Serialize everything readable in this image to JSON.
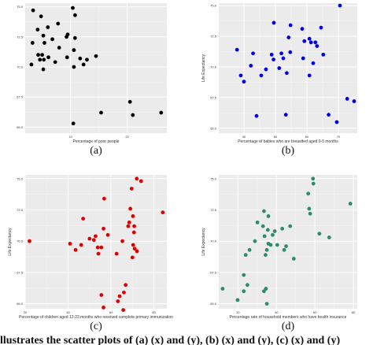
{
  "bottom_text": "llustrates the scatter plots of (a) (x) and (y), (b) (x) and (y), (c) (x) and (y)",
  "chart_data": [
    {
      "type": "scatter",
      "caption": "(a)",
      "xlabel": "Percentage of poor people",
      "ylabel": "",
      "xlim": [
        2,
        27
      ],
      "ylim": [
        64.5,
        75.3
      ],
      "x_ticks": [
        10,
        20
      ],
      "y_ticks": [
        65.0,
        67.5,
        70.0,
        72.5,
        75.0
      ],
      "y_tick_labels": [
        "65.0",
        "67.5",
        "70.0",
        "72.5",
        "75.0"
      ],
      "grid": true,
      "color": "#000000",
      "background": "#ebebeb",
      "points": [
        [
          3.4,
          74.7
        ],
        [
          4.8,
          74.2
        ],
        [
          4.2,
          73.1
        ],
        [
          6.0,
          73.3
        ],
        [
          7.8,
          73.6
        ],
        [
          5.2,
          72.6
        ],
        [
          3.3,
          72.0
        ],
        [
          5.4,
          72.0
        ],
        [
          6.8,
          72.3
        ],
        [
          10.8,
          74.3
        ],
        [
          10.4,
          74.9
        ],
        [
          9.3,
          72.5
        ],
        [
          9.5,
          72.7
        ],
        [
          10.8,
          72.4
        ],
        [
          8.0,
          71.6
        ],
        [
          4.3,
          71.0
        ],
        [
          5.0,
          71.0
        ],
        [
          6.1,
          70.8
        ],
        [
          4.6,
          70.6
        ],
        [
          5.3,
          70.6
        ],
        [
          3.1,
          70.2
        ],
        [
          7.3,
          70.4
        ],
        [
          9.4,
          70.8
        ],
        [
          10.6,
          71.4
        ],
        [
          11.7,
          70.7
        ],
        [
          12.9,
          70.6
        ],
        [
          12.3,
          70.2
        ],
        [
          14.5,
          70.9
        ],
        [
          5.2,
          69.8
        ],
        [
          10.6,
          70.0
        ],
        [
          20.5,
          67.1
        ],
        [
          10.5,
          65.3
        ],
        [
          15.4,
          66.2
        ],
        [
          21.0,
          66.0
        ],
        [
          26.0,
          66.2
        ]
      ]
    },
    {
      "type": "scatter",
      "caption": "(b)",
      "xlabel": "Percentage of babies who are breastfed aged 0-5 months",
      "ylabel": "Life Expectancy",
      "xlim": [
        32,
        76
      ],
      "ylim": [
        64.6,
        75.2
      ],
      "x_ticks": [
        40,
        50,
        60,
        70
      ],
      "y_ticks": [
        65.0,
        67.5,
        70.0,
        72.5,
        75.0
      ],
      "y_tick_labels": [
        "65.0",
        "67.5",
        "70.0",
        "72.5",
        "75.0"
      ],
      "grid": true,
      "color": "#0000ee",
      "background": "#ebebeb",
      "points": [
        [
          70.5,
          75.0
        ],
        [
          49.5,
          73.6
        ],
        [
          54.8,
          73.4
        ],
        [
          58.5,
          73.1
        ],
        [
          64.5,
          73.2
        ],
        [
          54.2,
          72.4
        ],
        [
          60.8,
          72.3
        ],
        [
          59.2,
          72.1
        ],
        [
          61.3,
          72.0
        ],
        [
          37.8,
          71.4
        ],
        [
          51.9,
          71.1
        ],
        [
          54.7,
          71.2
        ],
        [
          63.2,
          71.7
        ],
        [
          62.7,
          72.0
        ],
        [
          42.9,
          71.1
        ],
        [
          48.8,
          71.0
        ],
        [
          65.2,
          71.0
        ],
        [
          52.5,
          70.7
        ],
        [
          49.4,
          70.6
        ],
        [
          58.8,
          70.7
        ],
        [
          62.0,
          70.3
        ],
        [
          42.2,
          70.1
        ],
        [
          51.2,
          69.9
        ],
        [
          47.0,
          69.8
        ],
        [
          53.6,
          69.5
        ],
        [
          39.0,
          69.3
        ],
        [
          40.0,
          68.8
        ],
        [
          45.5,
          69.3
        ],
        [
          60.8,
          69.3
        ],
        [
          72.8,
          67.4
        ],
        [
          75.0,
          67.2
        ],
        [
          44.0,
          66.0
        ],
        [
          53.3,
          66.1
        ],
        [
          66.9,
          66.1
        ],
        [
          69.5,
          65.5
        ]
      ]
    },
    {
      "type": "scatter",
      "caption": "(c)",
      "xlabel": "Percentage of children aged 12-23 months who received complete primary immunization",
      "ylabel": "Life Expectancy",
      "xlim": [
        20,
        86
      ],
      "ylim": [
        64.6,
        75.3
      ],
      "x_ticks": [
        20,
        40,
        60,
        80
      ],
      "y_ticks": [
        65.0,
        67.5,
        70.0,
        72.5,
        75.0
      ],
      "y_tick_labels": [
        "65.0",
        "67.5",
        "70.0",
        "72.5",
        "75.0"
      ],
      "grid": true,
      "color": "#e00000",
      "background": "#ebebeb",
      "points": [
        [
          72.0,
          75.0
        ],
        [
          74.0,
          74.8
        ],
        [
          69.6,
          74.2
        ],
        [
          56.8,
          73.4
        ],
        [
          69.0,
          72.6
        ],
        [
          84.1,
          72.3
        ],
        [
          70.2,
          72.0
        ],
        [
          47.0,
          71.8
        ],
        [
          68.5,
          71.5
        ],
        [
          56.5,
          71.0
        ],
        [
          68.0,
          71.2
        ],
        [
          70.8,
          71.2
        ],
        [
          58.5,
          70.5
        ],
        [
          70.7,
          70.7
        ],
        [
          52.8,
          70.4
        ],
        [
          50.0,
          70.2
        ],
        [
          52.0,
          70.1
        ],
        [
          65.3,
          70.0
        ],
        [
          22.0,
          70.0
        ],
        [
          40.9,
          69.8
        ],
        [
          46.1,
          69.7
        ],
        [
          55.5,
          69.5
        ],
        [
          53.8,
          69.5
        ],
        [
          70.3,
          69.7
        ],
        [
          71.0,
          69.4
        ],
        [
          54.1,
          69.0
        ],
        [
          72.1,
          69.2
        ],
        [
          43.5,
          69.3
        ],
        [
          62.6,
          69.0
        ],
        [
          70.0,
          68.7
        ],
        [
          66.8,
          66.5
        ],
        [
          64.0,
          65.6
        ],
        [
          66.0,
          65.9
        ],
        [
          55.5,
          65.7
        ],
        [
          63.2,
          65.2
        ],
        [
          56.5,
          64.7
        ],
        [
          65.7,
          64.5
        ]
      ]
    },
    {
      "type": "scatter",
      "caption": "(d)",
      "xlabel": "Percentage rate of household members who have health insurance",
      "ylabel": "Life Expectancy",
      "xlim": [
        10,
        82
      ],
      "ylim": [
        64.6,
        75.3
      ],
      "x_ticks": [
        20,
        40,
        60,
        80
      ],
      "y_ticks": [
        65.0,
        67.5,
        70.0,
        72.5,
        75.0
      ],
      "y_tick_labels": [
        "65.0",
        "67.5",
        "70.0",
        "72.5",
        "75.0"
      ],
      "grid": true,
      "color": "#2e8b6e",
      "background": "#ebebeb",
      "points": [
        [
          59.0,
          75.0
        ],
        [
          59.2,
          74.6
        ],
        [
          56.5,
          73.8
        ],
        [
          78.4,
          73.0
        ],
        [
          57.0,
          72.6
        ],
        [
          57.5,
          72.2
        ],
        [
          33.5,
          72.4
        ],
        [
          35.8,
          72.0
        ],
        [
          30.1,
          71.5
        ],
        [
          33.0,
          71.2
        ],
        [
          35.5,
          70.9
        ],
        [
          38.0,
          70.5
        ],
        [
          39.1,
          70.8
        ],
        [
          43.0,
          71.0
        ],
        [
          47.1,
          71.2
        ],
        [
          62.3,
          70.6
        ],
        [
          67.4,
          70.3
        ],
        [
          28.8,
          70.0
        ],
        [
          33.8,
          70.4
        ],
        [
          35.8,
          69.8
        ],
        [
          37.0,
          69.7
        ],
        [
          40.4,
          69.7
        ],
        [
          44.0,
          69.3
        ],
        [
          26.0,
          69.3
        ],
        [
          35.0,
          69.3
        ],
        [
          45.0,
          69.6
        ],
        [
          49.0,
          68.6
        ],
        [
          24.0,
          68.9
        ],
        [
          34.3,
          68.9
        ],
        [
          23.0,
          67.3
        ],
        [
          24.9,
          66.5
        ],
        [
          12.0,
          66.2
        ],
        [
          23.0,
          66.0
        ],
        [
          33.5,
          66.0
        ],
        [
          34.5,
          66.2
        ],
        [
          19.8,
          65.3
        ],
        [
          35.0,
          65.0
        ]
      ]
    }
  ]
}
